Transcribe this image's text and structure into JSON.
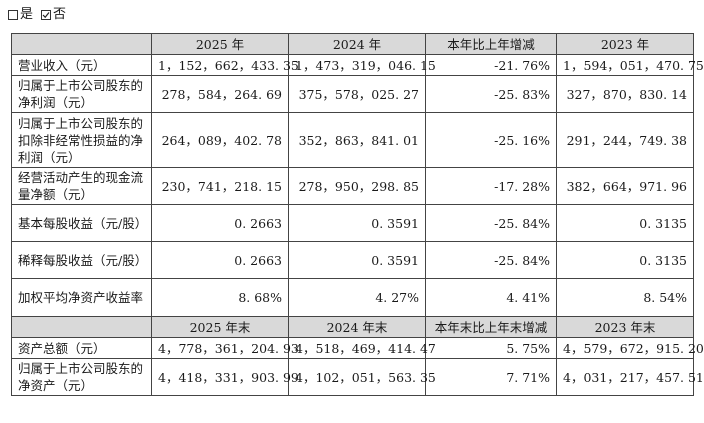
{
  "options": [
    {
      "label": "是",
      "checked": false
    },
    {
      "label": "否",
      "checked": true
    }
  ],
  "table1": {
    "header": [
      "",
      "2025 年",
      "2024 年",
      "本年比上年增减",
      "2023 年"
    ],
    "rows": [
      {
        "label": "营业收入（元）",
        "v2025": "1，152，662，433. 35",
        "v2024": "1，473，319，046. 15",
        "change": "-21. 76%",
        "v2023": "1，594，051，470. 75"
      },
      {
        "label": "归属于上市公司股东的净利润（元）",
        "v2025": "278，584，264. 69",
        "v2024": "375，578，025. 27",
        "change": "-25. 83%",
        "v2023": "327，870，830. 14"
      },
      {
        "label": "归属于上市公司股东的扣除非经常性损益的净利润（元）",
        "v2025": "264，089，402. 78",
        "v2024": "352，863，841. 01",
        "change": "-25. 16%",
        "v2023": "291，244，749. 38"
      },
      {
        "label": "经营活动产生的现金流量净额（元）",
        "v2025": "230，741，218. 15",
        "v2024": "278，950，298. 85",
        "change": "-17. 28%",
        "v2023": "382，664，971. 96"
      },
      {
        "label": "基本每股收益（元/股）",
        "v2025": "0. 2663",
        "v2024": "0. 3591",
        "change": "-25. 84%",
        "v2023": "0. 3135"
      },
      {
        "label": "稀释每股收益（元/股）",
        "v2025": "0. 2663",
        "v2024": "0. 3591",
        "change": "-25. 84%",
        "v2023": "0. 3135"
      },
      {
        "label": "加权平均净资产收益率",
        "v2025": "8. 68%",
        "v2024": "4. 27%",
        "change": "4. 41%",
        "v2023": "8. 54%"
      }
    ]
  },
  "table2": {
    "header": [
      "",
      "2025 年末",
      "2024 年末",
      "本年末比上年末增减",
      "2023 年末"
    ],
    "rows": [
      {
        "label": "资产总额（元）",
        "v2025": "4，778，361，204. 93",
        "v2024": "4，518，469，414. 47",
        "change": "5. 75%",
        "v2023": "4，579，672，915. 20"
      },
      {
        "label": "归属于上市公司股东的净资产（元）",
        "v2025": "4，418，331，903. 99",
        "v2024": "4，102，051，563. 35",
        "change": "7. 71%",
        "v2023": "4，031，217，457. 51"
      }
    ]
  }
}
